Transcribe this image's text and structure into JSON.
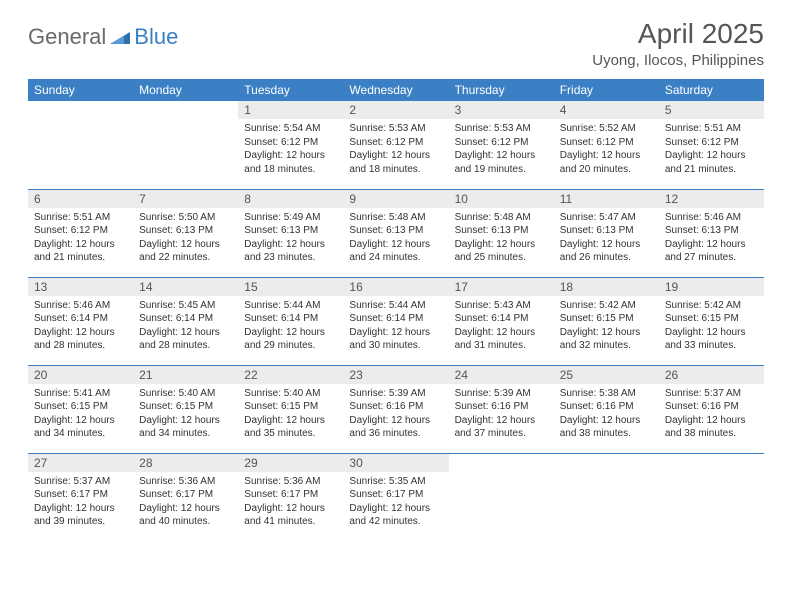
{
  "logo": {
    "text1": "General",
    "text2": "Blue"
  },
  "title": "April 2025",
  "location": "Uyong, Ilocos, Philippines",
  "colors": {
    "header_bg": "#3b7fc4",
    "header_text": "#ffffff",
    "daynum_bg": "#ececec",
    "border": "#3b7fc4",
    "text": "#333333"
  },
  "weekdays": [
    "Sunday",
    "Monday",
    "Tuesday",
    "Wednesday",
    "Thursday",
    "Friday",
    "Saturday"
  ],
  "weeks": [
    [
      {
        "empty": true
      },
      {
        "empty": true
      },
      {
        "day": "1",
        "sunrise": "Sunrise: 5:54 AM",
        "sunset": "Sunset: 6:12 PM",
        "daylight": "Daylight: 12 hours and 18 minutes."
      },
      {
        "day": "2",
        "sunrise": "Sunrise: 5:53 AM",
        "sunset": "Sunset: 6:12 PM",
        "daylight": "Daylight: 12 hours and 18 minutes."
      },
      {
        "day": "3",
        "sunrise": "Sunrise: 5:53 AM",
        "sunset": "Sunset: 6:12 PM",
        "daylight": "Daylight: 12 hours and 19 minutes."
      },
      {
        "day": "4",
        "sunrise": "Sunrise: 5:52 AM",
        "sunset": "Sunset: 6:12 PM",
        "daylight": "Daylight: 12 hours and 20 minutes."
      },
      {
        "day": "5",
        "sunrise": "Sunrise: 5:51 AM",
        "sunset": "Sunset: 6:12 PM",
        "daylight": "Daylight: 12 hours and 21 minutes."
      }
    ],
    [
      {
        "day": "6",
        "sunrise": "Sunrise: 5:51 AM",
        "sunset": "Sunset: 6:12 PM",
        "daylight": "Daylight: 12 hours and 21 minutes."
      },
      {
        "day": "7",
        "sunrise": "Sunrise: 5:50 AM",
        "sunset": "Sunset: 6:13 PM",
        "daylight": "Daylight: 12 hours and 22 minutes."
      },
      {
        "day": "8",
        "sunrise": "Sunrise: 5:49 AM",
        "sunset": "Sunset: 6:13 PM",
        "daylight": "Daylight: 12 hours and 23 minutes."
      },
      {
        "day": "9",
        "sunrise": "Sunrise: 5:48 AM",
        "sunset": "Sunset: 6:13 PM",
        "daylight": "Daylight: 12 hours and 24 minutes."
      },
      {
        "day": "10",
        "sunrise": "Sunrise: 5:48 AM",
        "sunset": "Sunset: 6:13 PM",
        "daylight": "Daylight: 12 hours and 25 minutes."
      },
      {
        "day": "11",
        "sunrise": "Sunrise: 5:47 AM",
        "sunset": "Sunset: 6:13 PM",
        "daylight": "Daylight: 12 hours and 26 minutes."
      },
      {
        "day": "12",
        "sunrise": "Sunrise: 5:46 AM",
        "sunset": "Sunset: 6:13 PM",
        "daylight": "Daylight: 12 hours and 27 minutes."
      }
    ],
    [
      {
        "day": "13",
        "sunrise": "Sunrise: 5:46 AM",
        "sunset": "Sunset: 6:14 PM",
        "daylight": "Daylight: 12 hours and 28 minutes."
      },
      {
        "day": "14",
        "sunrise": "Sunrise: 5:45 AM",
        "sunset": "Sunset: 6:14 PM",
        "daylight": "Daylight: 12 hours and 28 minutes."
      },
      {
        "day": "15",
        "sunrise": "Sunrise: 5:44 AM",
        "sunset": "Sunset: 6:14 PM",
        "daylight": "Daylight: 12 hours and 29 minutes."
      },
      {
        "day": "16",
        "sunrise": "Sunrise: 5:44 AM",
        "sunset": "Sunset: 6:14 PM",
        "daylight": "Daylight: 12 hours and 30 minutes."
      },
      {
        "day": "17",
        "sunrise": "Sunrise: 5:43 AM",
        "sunset": "Sunset: 6:14 PM",
        "daylight": "Daylight: 12 hours and 31 minutes."
      },
      {
        "day": "18",
        "sunrise": "Sunrise: 5:42 AM",
        "sunset": "Sunset: 6:15 PM",
        "daylight": "Daylight: 12 hours and 32 minutes."
      },
      {
        "day": "19",
        "sunrise": "Sunrise: 5:42 AM",
        "sunset": "Sunset: 6:15 PM",
        "daylight": "Daylight: 12 hours and 33 minutes."
      }
    ],
    [
      {
        "day": "20",
        "sunrise": "Sunrise: 5:41 AM",
        "sunset": "Sunset: 6:15 PM",
        "daylight": "Daylight: 12 hours and 34 minutes."
      },
      {
        "day": "21",
        "sunrise": "Sunrise: 5:40 AM",
        "sunset": "Sunset: 6:15 PM",
        "daylight": "Daylight: 12 hours and 34 minutes."
      },
      {
        "day": "22",
        "sunrise": "Sunrise: 5:40 AM",
        "sunset": "Sunset: 6:15 PM",
        "daylight": "Daylight: 12 hours and 35 minutes."
      },
      {
        "day": "23",
        "sunrise": "Sunrise: 5:39 AM",
        "sunset": "Sunset: 6:16 PM",
        "daylight": "Daylight: 12 hours and 36 minutes."
      },
      {
        "day": "24",
        "sunrise": "Sunrise: 5:39 AM",
        "sunset": "Sunset: 6:16 PM",
        "daylight": "Daylight: 12 hours and 37 minutes."
      },
      {
        "day": "25",
        "sunrise": "Sunrise: 5:38 AM",
        "sunset": "Sunset: 6:16 PM",
        "daylight": "Daylight: 12 hours and 38 minutes."
      },
      {
        "day": "26",
        "sunrise": "Sunrise: 5:37 AM",
        "sunset": "Sunset: 6:16 PM",
        "daylight": "Daylight: 12 hours and 38 minutes."
      }
    ],
    [
      {
        "day": "27",
        "sunrise": "Sunrise: 5:37 AM",
        "sunset": "Sunset: 6:17 PM",
        "daylight": "Daylight: 12 hours and 39 minutes."
      },
      {
        "day": "28",
        "sunrise": "Sunrise: 5:36 AM",
        "sunset": "Sunset: 6:17 PM",
        "daylight": "Daylight: 12 hours and 40 minutes."
      },
      {
        "day": "29",
        "sunrise": "Sunrise: 5:36 AM",
        "sunset": "Sunset: 6:17 PM",
        "daylight": "Daylight: 12 hours and 41 minutes."
      },
      {
        "day": "30",
        "sunrise": "Sunrise: 5:35 AM",
        "sunset": "Sunset: 6:17 PM",
        "daylight": "Daylight: 12 hours and 42 minutes."
      },
      {
        "empty": true
      },
      {
        "empty": true
      },
      {
        "empty": true
      }
    ]
  ]
}
